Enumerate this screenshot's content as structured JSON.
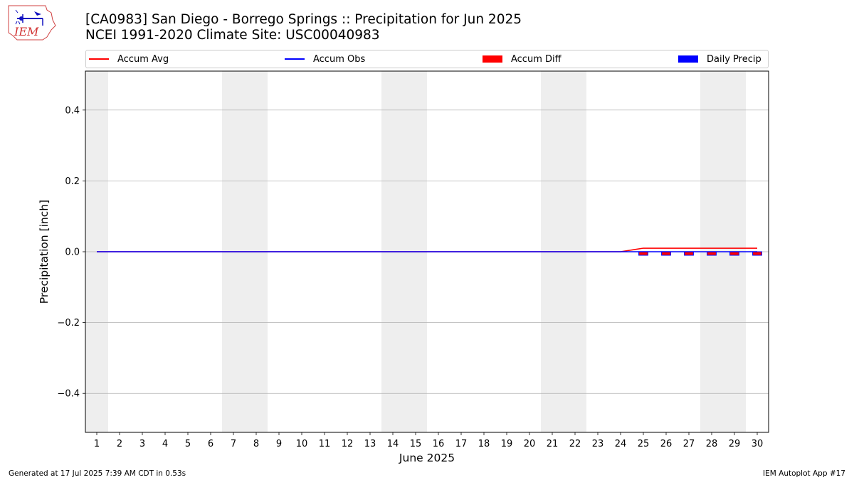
{
  "header": {
    "title_line1": "[CA0983] San Diego - Borrego Springs :: Precipitation for Jun 2025",
    "title_line2": "NCEI 1991-2020 Climate Site: USC00040983"
  },
  "logo": {
    "text": "IEM"
  },
  "legend": [
    {
      "label": "Accum Avg",
      "kind": "line",
      "color": "#ff0000"
    },
    {
      "label": "Accum Obs",
      "kind": "line",
      "color": "#0000ff"
    },
    {
      "label": "Accum Diff",
      "kind": "patch",
      "color": "#ff0000"
    },
    {
      "label": "Daily Precip",
      "kind": "patch",
      "color": "#0000ff"
    }
  ],
  "footer": {
    "left": "Generated at 17 Jul 2025 7:39 AM CDT in 0.53s",
    "right": "IEM Autoplot App #17"
  },
  "chart_data": {
    "type": "line",
    "xlabel": "June 2025",
    "ylabel": "Precipitation [inch]",
    "x": [
      1,
      2,
      3,
      4,
      5,
      6,
      7,
      8,
      9,
      10,
      11,
      12,
      13,
      14,
      15,
      16,
      17,
      18,
      19,
      20,
      21,
      22,
      23,
      24,
      25,
      26,
      27,
      28,
      29,
      30
    ],
    "xlim": [
      0.5,
      30.5
    ],
    "ylim": [
      -0.51,
      0.51
    ],
    "yticks": [
      -0.4,
      -0.2,
      0.0,
      0.2,
      0.4
    ],
    "ytick_labels": [
      "−0.4",
      "−0.2",
      "0.0",
      "0.2",
      "0.4"
    ],
    "grid": "y",
    "legend_position": "top",
    "weekend_days": [
      1,
      7,
      8,
      14,
      15,
      21,
      22,
      28,
      29
    ],
    "series": [
      {
        "name": "Accum Avg",
        "kind": "line",
        "color": "#ff0000",
        "values": [
          0,
          0,
          0,
          0,
          0,
          0,
          0,
          0,
          0,
          0,
          0,
          0,
          0,
          0,
          0,
          0,
          0,
          0,
          0,
          0,
          0,
          0,
          0,
          0,
          0.01,
          0.01,
          0.01,
          0.01,
          0.01,
          0.01
        ]
      },
      {
        "name": "Accum Obs",
        "kind": "line",
        "color": "#0000ff",
        "values": [
          0,
          0,
          0,
          0,
          0,
          0,
          0,
          0,
          0,
          0,
          0,
          0,
          0,
          0,
          0,
          0,
          0,
          0,
          0,
          0,
          0,
          0,
          0,
          0,
          0,
          0,
          0,
          0,
          0,
          0
        ]
      },
      {
        "name": "Accum Diff",
        "kind": "bar",
        "color": "#ff0000",
        "edge_color": "#0000ff",
        "values": [
          0,
          0,
          0,
          0,
          0,
          0,
          0,
          0,
          0,
          0,
          0,
          0,
          0,
          0,
          0,
          0,
          0,
          0,
          0,
          0,
          0,
          0,
          0,
          0,
          -0.01,
          -0.01,
          -0.01,
          -0.01,
          -0.01,
          -0.01
        ]
      },
      {
        "name": "Daily Precip",
        "kind": "bar",
        "color": "#0000ff",
        "values": [
          0,
          0,
          0,
          0,
          0,
          0,
          0,
          0,
          0,
          0,
          0,
          0,
          0,
          0,
          0,
          0,
          0,
          0,
          0,
          0,
          0,
          0,
          0,
          0,
          0,
          0,
          0,
          0,
          0,
          0
        ]
      }
    ]
  }
}
